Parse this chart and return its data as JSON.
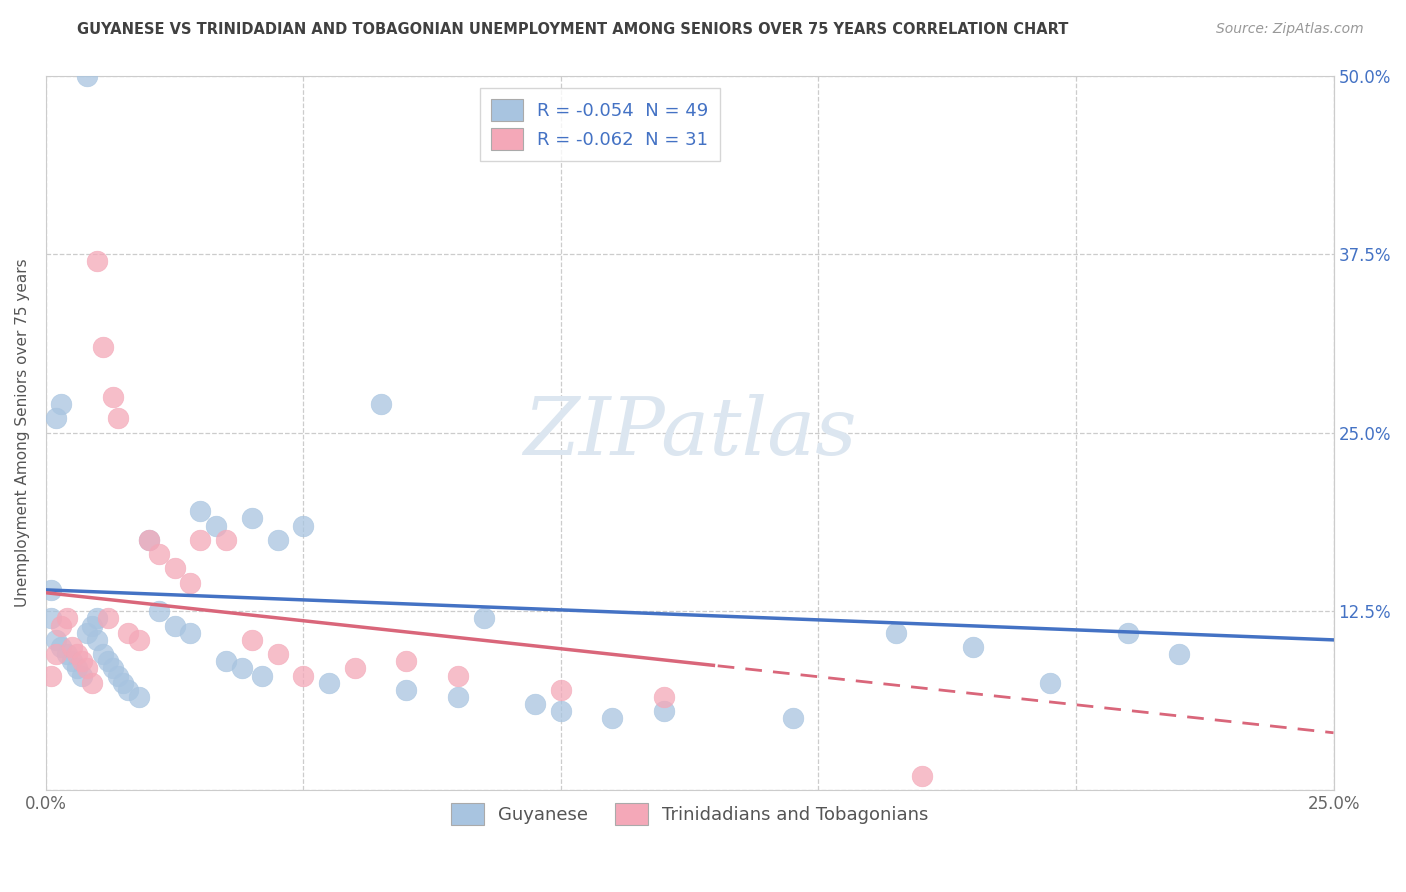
{
  "title": "GUYANESE VS TRINIDADIAN AND TOBAGONIAN UNEMPLOYMENT AMONG SENIORS OVER 75 YEARS CORRELATION CHART",
  "source": "Source: ZipAtlas.com",
  "ylabel": "Unemployment Among Seniors over 75 years",
  "xlim": [
    0.0,
    0.25
  ],
  "ylim": [
    0.0,
    0.5
  ],
  "xticks": [
    0.0,
    0.05,
    0.1,
    0.15,
    0.2,
    0.25
  ],
  "xtick_labels": [
    "0.0%",
    "",
    "",
    "",
    "",
    "25.0%"
  ],
  "yticks": [
    0.0,
    0.125,
    0.25,
    0.375,
    0.5
  ],
  "ytick_labels_right": [
    "",
    "12.5%",
    "25.0%",
    "37.5%",
    "50.0%"
  ],
  "legend_r_blue": "R = -0.054",
  "legend_n_blue": "N = 49",
  "legend_r_pink": "R = -0.062",
  "legend_n_pink": "N = 31",
  "blue_color": "#a8c4e0",
  "pink_color": "#f4a8b8",
  "blue_line_color": "#4472c4",
  "pink_line_color": "#d9667a",
  "text_color": "#4472c4",
  "title_color": "#404040",
  "background_color": "#ffffff",
  "grid_color": "#cccccc",
  "watermark_color": "#dce6f0",
  "blue_scatter_x": [
    0.008,
    0.003,
    0.002,
    0.001,
    0.001,
    0.002,
    0.003,
    0.004,
    0.005,
    0.006,
    0.007,
    0.008,
    0.009,
    0.01,
    0.01,
    0.011,
    0.012,
    0.013,
    0.014,
    0.015,
    0.016,
    0.018,
    0.02,
    0.022,
    0.025,
    0.028,
    0.03,
    0.033,
    0.035,
    0.038,
    0.04,
    0.042,
    0.045,
    0.05,
    0.055,
    0.065,
    0.07,
    0.08,
    0.085,
    0.095,
    0.1,
    0.11,
    0.12,
    0.145,
    0.165,
    0.18,
    0.195,
    0.21,
    0.22
  ],
  "blue_scatter_y": [
    0.5,
    0.27,
    0.26,
    0.14,
    0.12,
    0.105,
    0.1,
    0.095,
    0.09,
    0.085,
    0.08,
    0.11,
    0.115,
    0.12,
    0.105,
    0.095,
    0.09,
    0.085,
    0.08,
    0.075,
    0.07,
    0.065,
    0.175,
    0.125,
    0.115,
    0.11,
    0.195,
    0.185,
    0.09,
    0.085,
    0.19,
    0.08,
    0.175,
    0.185,
    0.075,
    0.27,
    0.07,
    0.065,
    0.12,
    0.06,
    0.055,
    0.05,
    0.055,
    0.05,
    0.11,
    0.1,
    0.075,
    0.11,
    0.095
  ],
  "pink_scatter_x": [
    0.001,
    0.002,
    0.003,
    0.004,
    0.005,
    0.006,
    0.007,
    0.008,
    0.009,
    0.01,
    0.011,
    0.012,
    0.013,
    0.014,
    0.016,
    0.018,
    0.02,
    0.022,
    0.025,
    0.028,
    0.03,
    0.035,
    0.04,
    0.045,
    0.05,
    0.06,
    0.07,
    0.08,
    0.1,
    0.12,
    0.17
  ],
  "pink_scatter_y": [
    0.08,
    0.095,
    0.115,
    0.12,
    0.1,
    0.095,
    0.09,
    0.085,
    0.075,
    0.37,
    0.31,
    0.12,
    0.275,
    0.26,
    0.11,
    0.105,
    0.175,
    0.165,
    0.155,
    0.145,
    0.175,
    0.175,
    0.105,
    0.095,
    0.08,
    0.085,
    0.09,
    0.08,
    0.07,
    0.065,
    0.01
  ],
  "blue_trend_x0": 0.0,
  "blue_trend_y0": 0.14,
  "blue_trend_x1": 0.25,
  "blue_trend_y1": 0.105,
  "pink_trend_x0": 0.0,
  "pink_trend_y0": 0.138,
  "pink_trend_x1": 0.25,
  "pink_trend_y1": 0.04
}
